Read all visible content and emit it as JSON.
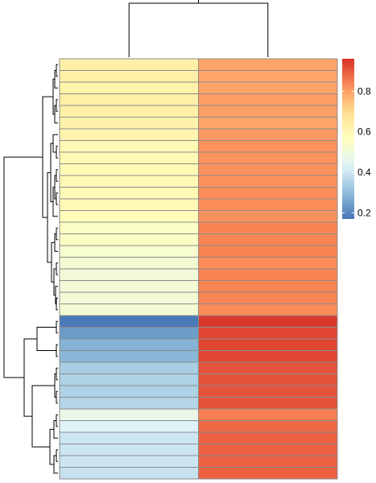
{
  "chart_data": {
    "type": "heatmap",
    "columns": 2,
    "rows": 36,
    "values": [
      [
        0.63,
        0.79
      ],
      [
        0.63,
        0.79
      ],
      [
        0.62,
        0.79
      ],
      [
        0.63,
        0.8
      ],
      [
        0.63,
        0.8
      ],
      [
        0.62,
        0.79
      ],
      [
        0.61,
        0.81
      ],
      [
        0.59,
        0.82
      ],
      [
        0.59,
        0.82
      ],
      [
        0.59,
        0.82
      ],
      [
        0.59,
        0.82
      ],
      [
        0.59,
        0.83
      ],
      [
        0.59,
        0.83
      ],
      [
        0.58,
        0.82
      ],
      [
        0.55,
        0.84
      ],
      [
        0.55,
        0.84
      ],
      [
        0.53,
        0.84
      ],
      [
        0.52,
        0.83
      ],
      [
        0.51,
        0.84
      ],
      [
        0.51,
        0.84
      ],
      [
        0.51,
        0.84
      ],
      [
        0.52,
        0.83
      ],
      [
        0.18,
        0.95
      ],
      [
        0.24,
        0.93
      ],
      [
        0.28,
        0.93
      ],
      [
        0.29,
        0.93
      ],
      [
        0.34,
        0.91
      ],
      [
        0.35,
        0.91
      ],
      [
        0.35,
        0.91
      ],
      [
        0.36,
        0.91
      ],
      [
        0.47,
        0.85
      ],
      [
        0.43,
        0.88
      ],
      [
        0.4,
        0.89
      ],
      [
        0.4,
        0.89
      ],
      [
        0.4,
        0.89
      ],
      [
        0.39,
        0.89
      ]
    ],
    "colorbar": {
      "range": [
        0.17,
        0.96
      ],
      "ticks": [
        "0.2",
        "0.4",
        "0.6",
        "0.8"
      ],
      "tick_values": [
        0.2,
        0.4,
        0.6,
        0.8
      ]
    },
    "row_dendrogram": true,
    "column_dendrogram": true,
    "grid": false,
    "legend": "right"
  }
}
